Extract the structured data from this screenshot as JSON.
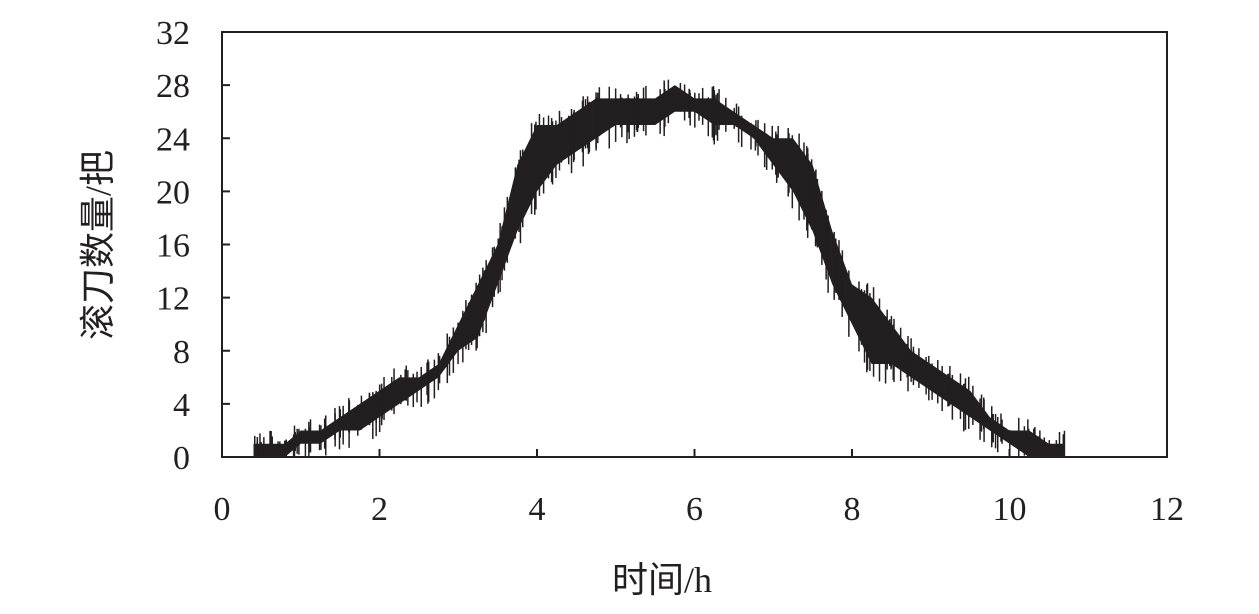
{
  "chart_data": {
    "type": "area",
    "title": "",
    "xlabel": "时间/h",
    "ylabel": "滚刀数量/把",
    "xlim": [
      0,
      12
    ],
    "ylim": [
      0,
      32
    ],
    "xticks": [
      "0",
      "2",
      "4",
      "6",
      "8",
      "10",
      "12"
    ],
    "yticks": [
      "0",
      "4",
      "8",
      "12",
      "16",
      "20",
      "24",
      "28",
      "32"
    ],
    "grid": false,
    "line_color": "#231f20",
    "series": [
      {
        "x": [
          0.4,
          0.6,
          0.8,
          1.0,
          1.25,
          1.5,
          1.75,
          2.0,
          2.25,
          2.5,
          2.75,
          3.0,
          3.25,
          3.5,
          3.75,
          4.0,
          4.25,
          4.5,
          4.75,
          5.0,
          5.25,
          5.5,
          5.75,
          6.0,
          6.25,
          6.5,
          6.75,
          7.0,
          7.25,
          7.5,
          7.75,
          8.0,
          8.25,
          8.5,
          8.75,
          9.0,
          9.25,
          9.5,
          9.75,
          10.0,
          10.25,
          10.5,
          10.7
        ],
        "low": [
          0,
          0,
          0,
          1,
          1,
          2,
          2,
          3,
          4,
          5,
          6,
          8,
          9,
          13,
          17,
          20,
          22,
          23,
          24,
          25,
          25,
          25,
          26,
          26,
          25,
          25,
          24,
          22,
          20,
          17,
          13,
          10,
          7,
          7,
          6,
          5,
          4,
          3,
          2,
          1,
          0,
          0,
          0
        ],
        "high": [
          1,
          1,
          1,
          2,
          2,
          3,
          4,
          5,
          6,
          6,
          7,
          10,
          13,
          16,
          22,
          25,
          25,
          26,
          27,
          27,
          27,
          27,
          28,
          27,
          27,
          26,
          25,
          24,
          24,
          22,
          17,
          13,
          12,
          10,
          8,
          7,
          6,
          5,
          3,
          2,
          2,
          1,
          1
        ]
      }
    ]
  }
}
